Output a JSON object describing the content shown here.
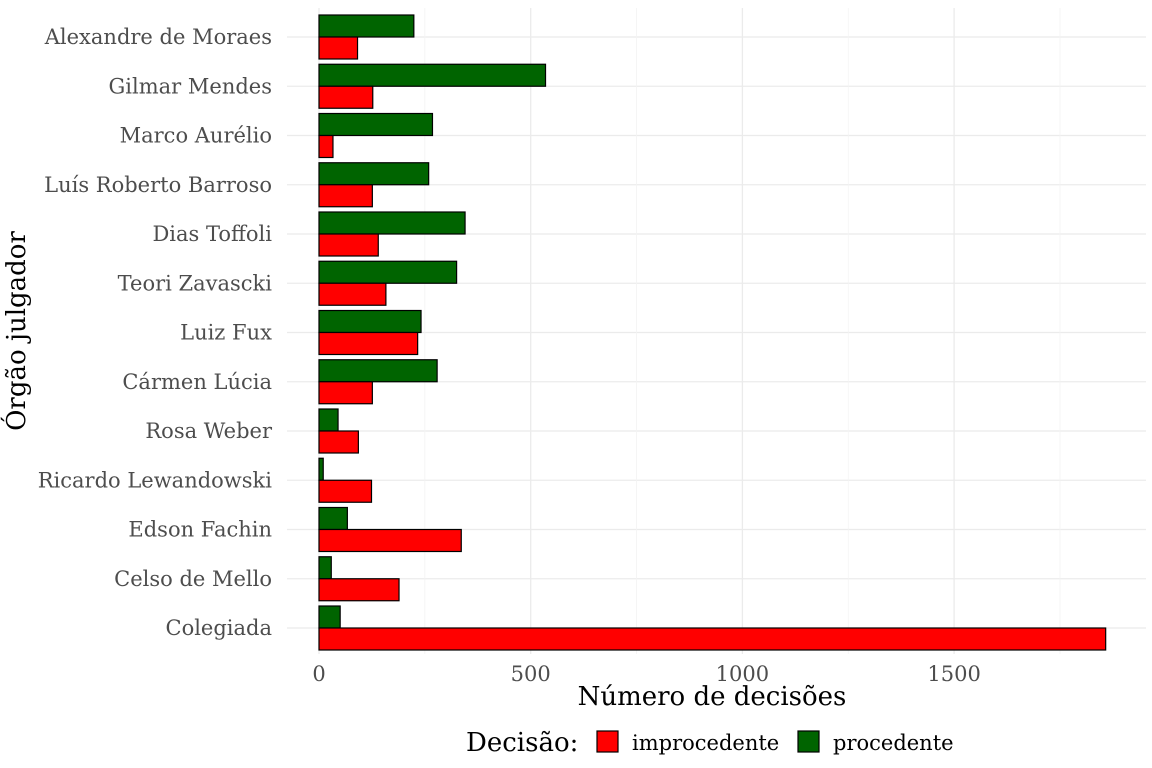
{
  "chart_data": {
    "type": "bar",
    "orientation": "horizontal",
    "categories": [
      "Alexandre de Moraes",
      "Gilmar Mendes",
      "Marco Aurélio",
      "Luís Roberto Barroso",
      "Dias Toffoli",
      "Teori Zavascki",
      "Luiz Fux",
      "Cármen Lúcia",
      "Rosa Weber",
      "Ricardo Lewandowski",
      "Edson Fachin",
      "Celso de Mello",
      "Colegiada"
    ],
    "series": [
      {
        "name": "improcedente",
        "color": "#FF0000",
        "values": [
          91,
          127,
          33,
          126,
          140,
          158,
          233,
          126,
          93,
          124,
          336,
          189,
          1858
        ]
      },
      {
        "name": "procedente",
        "color": "#006400",
        "values": [
          224,
          535,
          268,
          259,
          345,
          325,
          241,
          279,
          45,
          10,
          67,
          29,
          50
        ]
      }
    ],
    "xlabel": "Número de decisões",
    "ylabel": "Órgão julgador",
    "xlim": [
      0,
      1900
    ],
    "xticks": [
      0,
      500,
      1000,
      1500
    ],
    "xtick_labels": [
      "0",
      "500",
      "1000",
      "1500"
    ],
    "grid": true,
    "legend": {
      "title": "Decisão:",
      "position": "bottom"
    }
  }
}
